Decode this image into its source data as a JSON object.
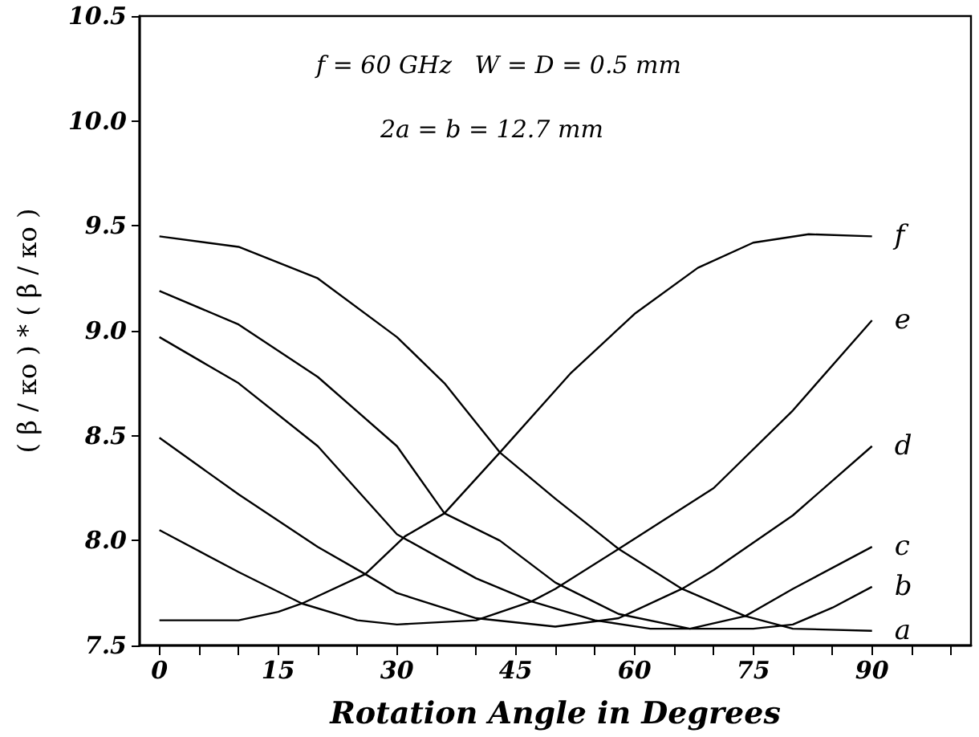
{
  "chart_data": {
    "type": "line",
    "xlabel": "Rotation Angle in Degrees",
    "ylabel": "( β / κo ) * ( β / κo )",
    "annotations": [
      "f = 60 GHz   W = D = 0.5 mm",
      "2a = b = 12.7 mm"
    ],
    "xlim": [
      -2.5,
      102.5
    ],
    "xticks": [
      0,
      {
        "value": 5,
        "label": null
      },
      {
        "value": 10,
        "label": null
      },
      15,
      {
        "value": 20,
        "label": null
      },
      {
        "value": 25,
        "label": null
      },
      30,
      {
        "value": 35,
        "label": null
      },
      {
        "value": 40,
        "label": null
      },
      45,
      {
        "value": 50,
        "label": null
      },
      {
        "value": 55,
        "label": null
      },
      60,
      {
        "value": 65,
        "label": null
      },
      {
        "value": 70,
        "label": null
      },
      75,
      {
        "value": 80,
        "label": null
      },
      {
        "value": 85,
        "label": null
      },
      90,
      {
        "value": 95,
        "label": null
      },
      {
        "value": 100,
        "label": null
      }
    ],
    "ylim": [
      7.5,
      10.5
    ],
    "yticks": [
      7.5,
      {
        "value": 8,
        "label": "8.0"
      },
      8.5,
      {
        "value": 9,
        "label": "9.0"
      },
      9.5,
      {
        "value": 10,
        "label": "10.0"
      },
      10.5
    ],
    "grid": false,
    "legend": false,
    "marker": "none",
    "line_style": "solid",
    "series": [
      {
        "name": "a",
        "color": "#000000",
        "x": [
          0,
          10,
          20,
          30,
          36,
          43,
          50,
          58,
          66,
          74,
          80,
          90
        ],
        "values": [
          9.45,
          9.4,
          9.25,
          8.97,
          8.75,
          8.42,
          8.2,
          7.96,
          7.77,
          7.64,
          7.58,
          7.57
        ]
      },
      {
        "name": "b",
        "color": "#000000",
        "x": [
          0,
          10,
          20,
          30,
          36,
          43,
          50,
          58,
          67,
          75,
          80,
          85,
          90
        ],
        "values": [
          9.19,
          9.03,
          8.78,
          8.45,
          8.13,
          8.0,
          7.8,
          7.65,
          7.58,
          7.58,
          7.6,
          7.68,
          7.78
        ]
      },
      {
        "name": "c",
        "color": "#000000",
        "x": [
          0,
          10,
          20,
          30,
          40,
          47,
          55,
          62,
          67,
          74,
          80,
          90
        ],
        "values": [
          8.97,
          8.75,
          8.45,
          8.03,
          7.82,
          7.71,
          7.62,
          7.58,
          7.58,
          7.64,
          7.77,
          7.97
        ]
      },
      {
        "name": "d",
        "color": "#000000",
        "x": [
          0,
          10,
          20,
          26,
          30,
          40,
          50,
          58,
          66,
          70,
          80,
          90
        ],
        "values": [
          8.49,
          8.22,
          7.97,
          7.84,
          7.75,
          7.63,
          7.59,
          7.63,
          7.77,
          7.86,
          8.12,
          8.45
        ]
      },
      {
        "name": "e",
        "color": "#000000",
        "x": [
          0,
          10,
          18,
          25,
          30,
          40,
          47,
          50,
          58,
          70,
          80,
          90
        ],
        "values": [
          8.05,
          7.85,
          7.7,
          7.62,
          7.6,
          7.62,
          7.71,
          7.77,
          7.96,
          8.25,
          8.62,
          9.05
        ]
      },
      {
        "name": "f",
        "color": "#000000",
        "x": [
          0,
          10,
          15,
          18,
          26,
          31,
          36,
          43,
          52,
          60,
          68,
          75,
          82,
          90
        ],
        "values": [
          7.62,
          7.62,
          7.66,
          7.7,
          7.84,
          8.02,
          8.13,
          8.42,
          8.8,
          9.08,
          9.3,
          9.42,
          9.46,
          9.45
        ]
      }
    ]
  }
}
